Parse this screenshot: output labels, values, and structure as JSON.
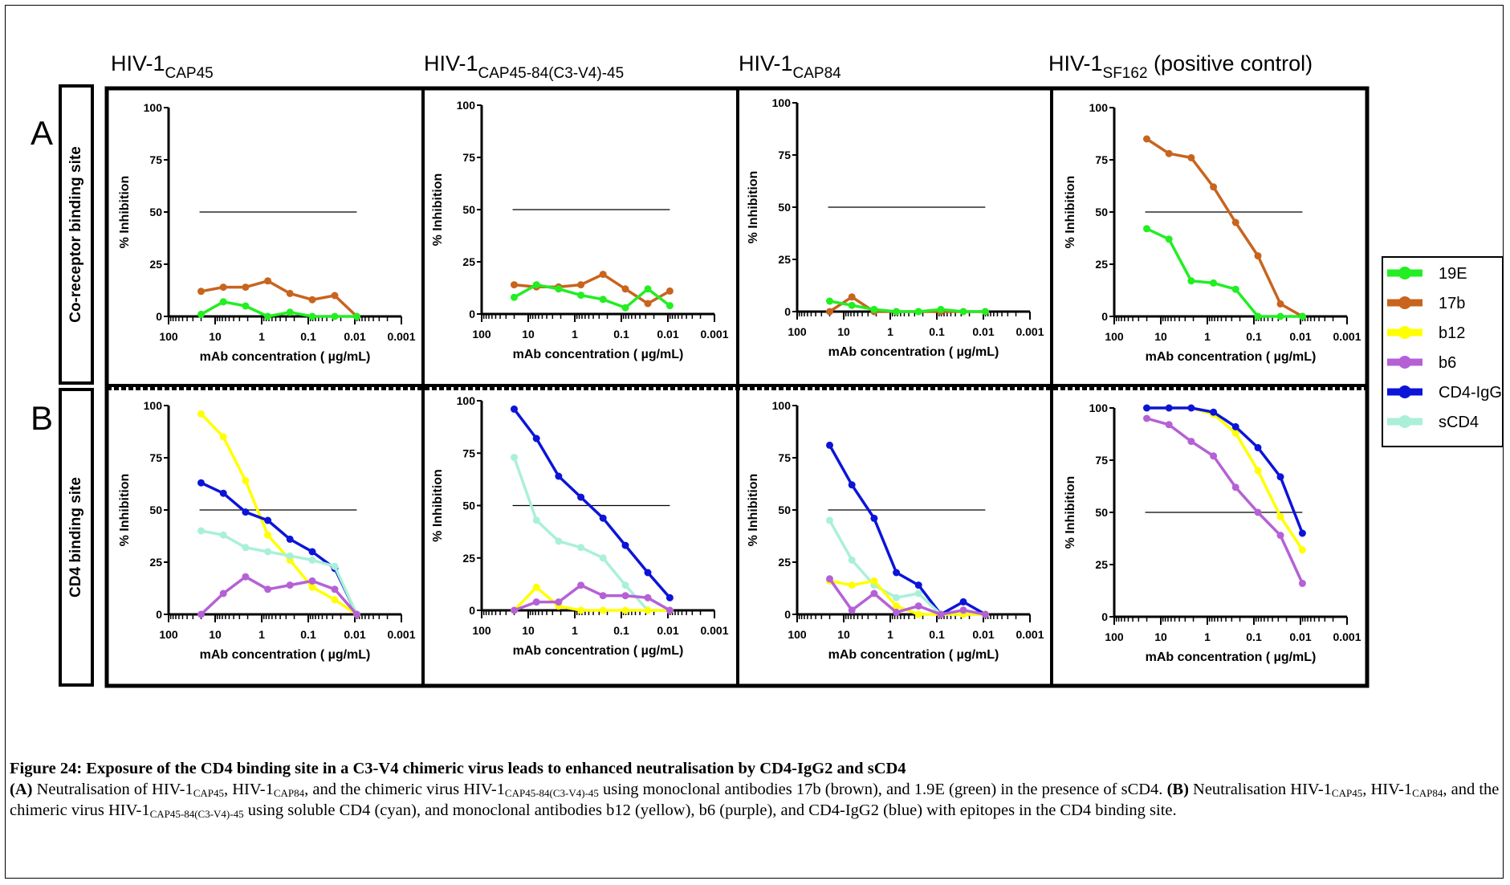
{
  "figure": {
    "columns": [
      {
        "base": "HIV-1",
        "sub": "CAP45",
        "suffix": ""
      },
      {
        "base": "HIV-1",
        "sub": "CAP45-84(C3-V4)-45",
        "suffix": ""
      },
      {
        "base": "HIV-1",
        "sub": "CAP84",
        "suffix": ""
      },
      {
        "base": "HIV-1",
        "sub": "SF162",
        "suffix": " (positive control)"
      }
    ],
    "rows": [
      {
        "letter": "A",
        "label": "Co-receptor binding site"
      },
      {
        "letter": "B",
        "label": "CD4 binding site"
      }
    ],
    "ylabel": "% Inhibition",
    "xlabel": "mAb concentration ( µg/mL)",
    "legend": [
      {
        "name": "19E",
        "color": "#22ee22"
      },
      {
        "name": "17b",
        "color": "#c8641e"
      },
      {
        "name": "b12",
        "color": "#ffff00"
      },
      {
        "name": "b6",
        "color": "#b561d6"
      },
      {
        "name": "CD4-IgG",
        "color": "#0c14d8"
      },
      {
        "name": "sCD4",
        "color": "#aaf0d8"
      }
    ]
  },
  "chart_data": [
    {
      "type": "line",
      "panel": "A1",
      "xscale": "log",
      "xlim": [
        100,
        0.001
      ],
      "ylim": [
        0,
        100
      ],
      "x_ticks": [
        "100",
        "10",
        "1",
        "0.1",
        "0.01",
        "0.001"
      ],
      "y_ticks": [
        "0",
        "25",
        "50",
        "75",
        "100"
      ],
      "x": [
        20,
        6.67,
        2.22,
        0.74,
        0.247,
        0.082,
        0.027,
        0.0091
      ],
      "reference_line": 50,
      "series": [
        {
          "name": "17b",
          "color": "#c8641e",
          "values": [
            12,
            14,
            14,
            17,
            11,
            8,
            10,
            0
          ]
        },
        {
          "name": "19E",
          "color": "#22ee22",
          "values": [
            1,
            7,
            5,
            0,
            2,
            0,
            0,
            0
          ]
        }
      ]
    },
    {
      "type": "line",
      "panel": "A2",
      "xscale": "log",
      "xlim": [
        100,
        0.001
      ],
      "ylim": [
        0,
        100
      ],
      "x_ticks": [
        "100",
        "10",
        "1",
        "0.1",
        "0.01",
        "0.001"
      ],
      "y_ticks": [
        "0",
        "25",
        "50",
        "75",
        "100"
      ],
      "x": [
        20,
        6.67,
        2.22,
        0.74,
        0.247,
        0.082,
        0.027,
        0.0091
      ],
      "reference_line": 50,
      "series": [
        {
          "name": "17b",
          "color": "#c8641e",
          "values": [
            14,
            13,
            13,
            14,
            19,
            12,
            5,
            11
          ]
        },
        {
          "name": "19E",
          "color": "#22ee22",
          "values": [
            8,
            14,
            12,
            9,
            7,
            3,
            12,
            4
          ]
        }
      ]
    },
    {
      "type": "line",
      "panel": "A3",
      "xscale": "log",
      "xlim": [
        100,
        0.001
      ],
      "ylim": [
        0,
        100
      ],
      "x_ticks": [
        "100",
        "10",
        "1",
        "0.1",
        "0.01",
        "0.001"
      ],
      "y_ticks": [
        "0",
        "25",
        "50",
        "75",
        "100"
      ],
      "x": [
        20,
        6.67,
        2.22,
        0.74,
        0.247,
        0.082,
        0.027,
        0.0091
      ],
      "reference_line": 50,
      "series": [
        {
          "name": "17b",
          "color": "#c8641e",
          "values": [
            0,
            7,
            0,
            0,
            0,
            0,
            0,
            0
          ]
        },
        {
          "name": "19E",
          "color": "#22ee22",
          "values": [
            5,
            3,
            1,
            0,
            0,
            1,
            0,
            0
          ]
        }
      ]
    },
    {
      "type": "line",
      "panel": "A4",
      "xscale": "log",
      "xlim": [
        100,
        0.001
      ],
      "ylim": [
        0,
        100
      ],
      "x_ticks": [
        "100",
        "10",
        "1",
        "0.1",
        "0.01",
        "0.001"
      ],
      "y_ticks": [
        "0",
        "25",
        "50",
        "75",
        "100"
      ],
      "x": [
        20,
        6.67,
        2.22,
        0.74,
        0.247,
        0.082,
        0.027,
        0.0091
      ],
      "reference_line": 50,
      "series": [
        {
          "name": "17b",
          "color": "#c8641e",
          "values": [
            85,
            78,
            76,
            62,
            45,
            29,
            6,
            0
          ]
        },
        {
          "name": "19E",
          "color": "#22ee22",
          "values": [
            42,
            37,
            17,
            16,
            13,
            0,
            0,
            0
          ]
        }
      ]
    },
    {
      "type": "line",
      "panel": "B1",
      "xscale": "log",
      "xlim": [
        100,
        0.001
      ],
      "ylim": [
        0,
        100
      ],
      "x_ticks": [
        "100",
        "10",
        "1",
        "0.1",
        "0.01",
        "0.001"
      ],
      "y_ticks": [
        "0",
        "25",
        "50",
        "75",
        "100"
      ],
      "x": [
        20,
        6.67,
        2.22,
        0.74,
        0.247,
        0.082,
        0.027,
        0.0091
      ],
      "reference_line": 50,
      "series": [
        {
          "name": "b12",
          "color": "#ffff00",
          "values": [
            96,
            85,
            64,
            38,
            26,
            13,
            7,
            0
          ]
        },
        {
          "name": "CD4-IgG",
          "color": "#0c14d8",
          "values": [
            63,
            58,
            49,
            45,
            36,
            30,
            22,
            0
          ]
        },
        {
          "name": "sCD4",
          "color": "#aaf0d8",
          "values": [
            40,
            38,
            32,
            30,
            28,
            26,
            23,
            0
          ]
        },
        {
          "name": "b6",
          "color": "#b561d6",
          "values": [
            0,
            10,
            18,
            12,
            14,
            16,
            12,
            0
          ]
        }
      ]
    },
    {
      "type": "line",
      "panel": "B2",
      "xscale": "log",
      "xlim": [
        100,
        0.001
      ],
      "ylim": [
        0,
        100
      ],
      "x_ticks": [
        "100",
        "10",
        "1",
        "0.1",
        "0.01",
        "0.001"
      ],
      "y_ticks": [
        "0",
        "25",
        "50",
        "75",
        "100"
      ],
      "x": [
        20,
        6.67,
        2.22,
        0.74,
        0.247,
        0.082,
        0.027,
        0.0091
      ],
      "reference_line": 50,
      "series": [
        {
          "name": "CD4-IgG",
          "color": "#0c14d8",
          "values": [
            96,
            82,
            64,
            54,
            44,
            31,
            18,
            6
          ]
        },
        {
          "name": "sCD4",
          "color": "#aaf0d8",
          "values": [
            73,
            43,
            33,
            30,
            25,
            12,
            0,
            0
          ]
        },
        {
          "name": "b12",
          "color": "#ffff00",
          "values": [
            0,
            11,
            2,
            0,
            0,
            0,
            0,
            0
          ]
        },
        {
          "name": "b6",
          "color": "#b561d6",
          "values": [
            0,
            4,
            4,
            12,
            7,
            7,
            6,
            0
          ]
        }
      ]
    },
    {
      "type": "line",
      "panel": "B3",
      "xscale": "log",
      "xlim": [
        100,
        0.001
      ],
      "ylim": [
        0,
        100
      ],
      "x_ticks": [
        "100",
        "10",
        "1",
        "0.1",
        "0.01",
        "0.001"
      ],
      "y_ticks": [
        "0",
        "25",
        "50",
        "75",
        "100"
      ],
      "x": [
        20,
        6.67,
        2.22,
        0.74,
        0.247,
        0.082,
        0.027,
        0.0091
      ],
      "reference_line": 50,
      "series": [
        {
          "name": "CD4-IgG",
          "color": "#0c14d8",
          "values": [
            81,
            62,
            46,
            20,
            14,
            0,
            6,
            0
          ]
        },
        {
          "name": "sCD4",
          "color": "#aaf0d8",
          "values": [
            45,
            26,
            14,
            8,
            10,
            0,
            0,
            0
          ]
        },
        {
          "name": "b12",
          "color": "#ffff00",
          "values": [
            16,
            14,
            16,
            4,
            0,
            0,
            0,
            0
          ]
        },
        {
          "name": "b6",
          "color": "#b561d6",
          "values": [
            17,
            2,
            10,
            1,
            4,
            0,
            2,
            0
          ]
        }
      ]
    },
    {
      "type": "line",
      "panel": "B4",
      "xscale": "log",
      "xlim": [
        100,
        0.001
      ],
      "ylim": [
        0,
        100
      ],
      "x_ticks": [
        "100",
        "10",
        "1",
        "0.1",
        "0.01",
        "0.001"
      ],
      "y_ticks": [
        "0",
        "25",
        "50",
        "75",
        "100"
      ],
      "x": [
        20,
        6.67,
        2.22,
        0.74,
        0.247,
        0.082,
        0.027,
        0.0091
      ],
      "reference_line": 50,
      "series": [
        {
          "name": "b12",
          "color": "#ffff00",
          "values": [
            100,
            100,
            100,
            97,
            88,
            70,
            48,
            32
          ]
        },
        {
          "name": "CD4-IgG",
          "color": "#0c14d8",
          "values": [
            100,
            100,
            100,
            98,
            91,
            81,
            67,
            40
          ]
        },
        {
          "name": "b6",
          "color": "#b561d6",
          "values": [
            95,
            92,
            84,
            77,
            62,
            50,
            39,
            16
          ]
        }
      ]
    }
  ],
  "caption": {
    "title": "Figure 24: Exposure of the CD4 binding site in a C3-V4 chimeric virus leads to enhanced neutralisation by CD4-IgG2 and sCD4",
    "part_a_label": "(A)",
    "part_a": [
      " Neutralisation of HIV-1",
      "CAP45",
      ", HIV-1",
      "CAP84",
      ", and the chimeric virus HIV-1",
      "CAP45-84(C3-V4)-45",
      " using monoclonal antibodies 17b (brown), and 1.9E (green) in the presence of sCD4.  "
    ],
    "part_b_label": "(B)",
    "part_b": [
      " Neutralisation HIV-1",
      "CAP45",
      ", HIV-1",
      "CAP84",
      ", and the chimeric virus HIV-1",
      "CAP45-84(C3-V4)-45",
      " using soluble CD4 (cyan), and monoclonal antibodies b12 (yellow), b6 (purple), and CD4-IgG2 (blue) with epitopes in the CD4 binding site."
    ]
  }
}
